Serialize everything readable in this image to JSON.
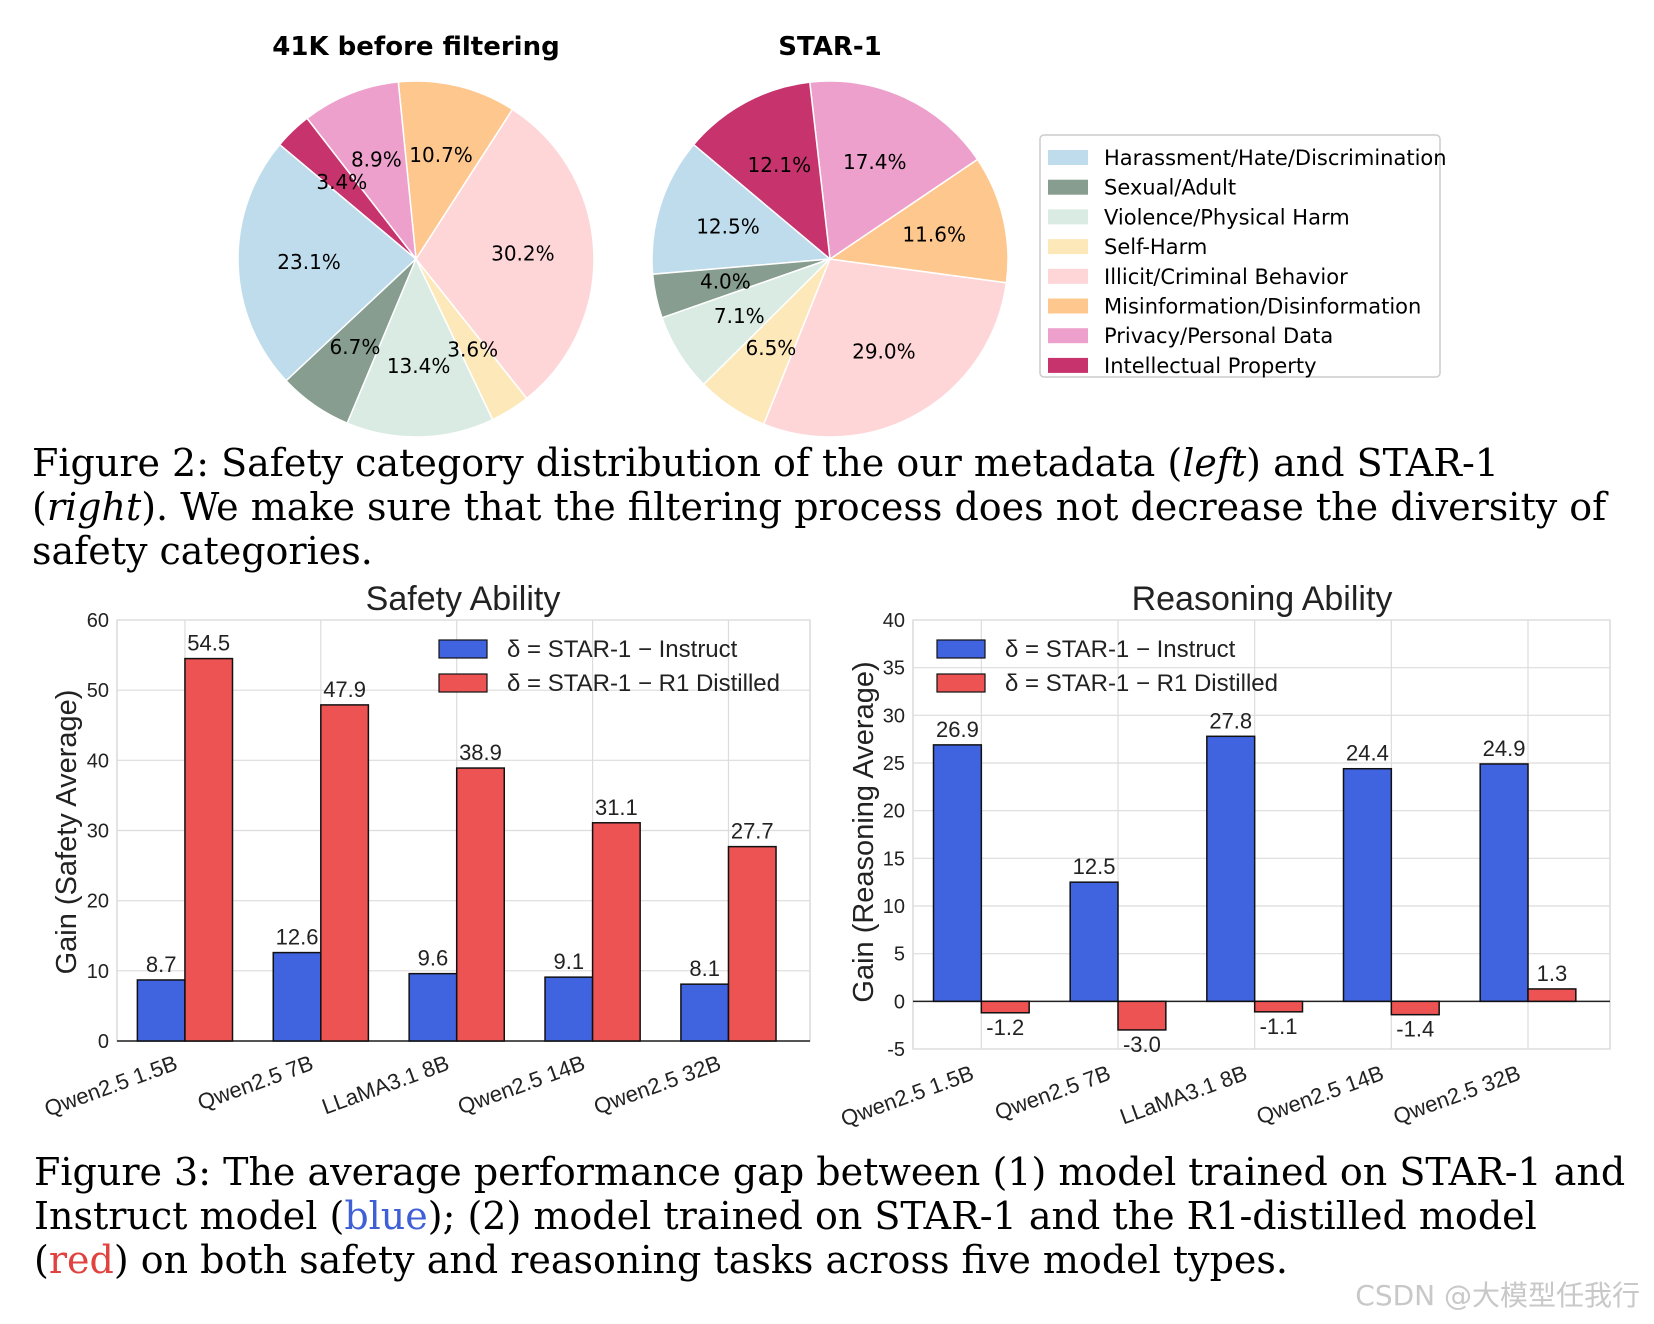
{
  "figure2": {
    "caption_prefix": "Figure 2: Safety category distribution of the our metadata (",
    "caption_left": "left",
    "caption_mid": ") and STAR-1 (",
    "caption_right": "right",
    "caption_suffix": "). We make sure that the filtering process does not decrease the diversity of safety categories."
  },
  "figure3": {
    "caption_prefix": "Figure 3: The average performance gap between (1) model trained on STAR-1 and Instruct model (",
    "caption_blue": "blue",
    "caption_mid": "); (2) model trained on STAR-1 and the R1-distilled model (",
    "caption_red": "red",
    "caption_suffix": ") on both safety and reasoning tasks across five model types."
  },
  "watermark": "CSDN @大模型任我行",
  "chart_data": [
    {
      "type": "pie",
      "title": "41K before filtering",
      "categories": [
        "Harassment/Hate/Discrimination",
        "Sexual/Adult",
        "Violence/Physical Harm",
        "Self-Harm",
        "Illicit/Criminal Behavior",
        "Misinformation/Disinformation",
        "Privacy/Personal Data",
        "Intellectual Property"
      ],
      "values": [
        23.1,
        6.7,
        13.4,
        3.6,
        30.2,
        10.7,
        8.9,
        3.4
      ],
      "labels": [
        "23.1%",
        "6.7%",
        "13.4%",
        "3.6%",
        "30.2%",
        "10.7%",
        "8.9%",
        "3.4%"
      ],
      "colors": [
        "#bfdcec",
        "#869d90",
        "#d9ebe3",
        "#fde8b9",
        "#fed6d8",
        "#fec78d",
        "#eda0cb",
        "#c7336d"
      ]
    },
    {
      "type": "pie",
      "title": "STAR-1",
      "categories": [
        "Harassment/Hate/Discrimination",
        "Sexual/Adult",
        "Violence/Physical Harm",
        "Self-Harm",
        "Illicit/Criminal Behavior",
        "Misinformation/Disinformation",
        "Privacy/Personal Data",
        "Intellectual Property"
      ],
      "values": [
        12.5,
        4.0,
        7.1,
        6.5,
        29.0,
        11.6,
        17.4,
        12.1
      ],
      "labels": [
        "12.5%",
        "4.0%",
        "7.1%",
        "6.5%",
        "29.0%",
        "11.6%",
        "17.4%",
        "12.1%"
      ],
      "colors": [
        "#bfdcec",
        "#869d90",
        "#d9ebe3",
        "#fde8b9",
        "#fed6d8",
        "#fec78d",
        "#eda0cb",
        "#c7336d"
      ],
      "legend": {
        "placement": "right",
        "entries": [
          "Harassment/Hate/Discrimination",
          "Sexual/Adult",
          "Violence/Physical Harm",
          "Self-Harm",
          "Illicit/Criminal Behavior",
          "Misinformation/Disinformation",
          "Privacy/Personal Data",
          "Intellectual Property"
        ]
      }
    },
    {
      "type": "bar",
      "title": "Safety Ability",
      "ylabel": "Gain (Safety Average)",
      "xlabel": "",
      "ylim": [
        0,
        60
      ],
      "yticks": [
        0,
        10,
        20,
        30,
        40,
        50,
        60
      ],
      "grid": true,
      "categories": [
        "Qwen2.5 1.5B",
        "Qwen2.5 7B",
        "LLaMA3.1 8B",
        "Qwen2.5 14B",
        "Qwen2.5 32B"
      ],
      "series": [
        {
          "name": "δ = STAR-1 − Instruct",
          "color": "#4063e0",
          "values": [
            8.7,
            12.6,
            9.6,
            9.1,
            8.1
          ],
          "labels": [
            "8.7",
            "12.6",
            "9.6",
            "9.1",
            "8.1"
          ]
        },
        {
          "name": "δ = STAR-1 − R1 Distilled",
          "color": "#ee5353",
          "values": [
            54.5,
            47.9,
            38.9,
            31.1,
            27.7
          ],
          "labels": [
            "54.5",
            "47.9",
            "38.9",
            "31.1",
            "27.7"
          ]
        }
      ],
      "legend": "top-right"
    },
    {
      "type": "bar",
      "title": "Reasoning Ability",
      "ylabel": "Gain (Reasoning Average)",
      "xlabel": "",
      "ylim": [
        -5,
        40
      ],
      "yticks": [
        -5,
        0,
        5,
        10,
        15,
        20,
        25,
        30,
        35,
        40
      ],
      "grid": true,
      "categories": [
        "Qwen2.5 1.5B",
        "Qwen2.5 7B",
        "LLaMA3.1 8B",
        "Qwen2.5 14B",
        "Qwen2.5 32B"
      ],
      "series": [
        {
          "name": "δ = STAR-1 − Instruct",
          "color": "#4063e0",
          "values": [
            26.9,
            12.5,
            27.8,
            24.4,
            24.9
          ],
          "labels": [
            "26.9",
            "12.5",
            "27.8",
            "24.4",
            "24.9"
          ]
        },
        {
          "name": "δ = STAR-1 − R1 Distilled",
          "color": "#ee5353",
          "values": [
            -1.2,
            -3.0,
            -1.1,
            -1.4,
            1.3
          ],
          "labels": [
            "-1.2",
            "-3.0",
            "-1.1",
            "-1.4",
            "1.3"
          ]
        }
      ],
      "legend": "top-left"
    }
  ]
}
